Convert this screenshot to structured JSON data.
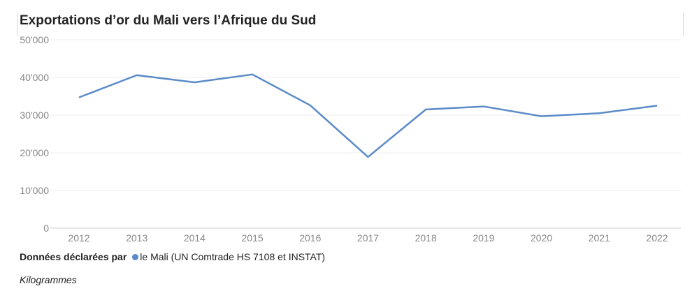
{
  "chart_data": {
    "type": "line",
    "title": "Exportations d’or du Mali vers l’Afrique du Sud",
    "categories": [
      "2012",
      "2013",
      "2014",
      "2015",
      "2016",
      "2017",
      "2018",
      "2019",
      "2020",
      "2021",
      "2022"
    ],
    "series": [
      {
        "name": "le Mali (UN Comtrade HS 7108 et INSTAT)",
        "color": "#5b8bc8",
        "values": [
          34700,
          40600,
          38700,
          40800,
          32600,
          18900,
          31500,
          32300,
          29700,
          30500,
          32500
        ]
      }
    ],
    "y_ticks": [
      "0",
      "10'000",
      "20'000",
      "30'000",
      "40'000",
      "50'000"
    ],
    "ylim": [
      0,
      50000
    ],
    "grid": true,
    "legend_prefix": "Données déclarées par",
    "unit_note": "Kilogrammes"
  }
}
